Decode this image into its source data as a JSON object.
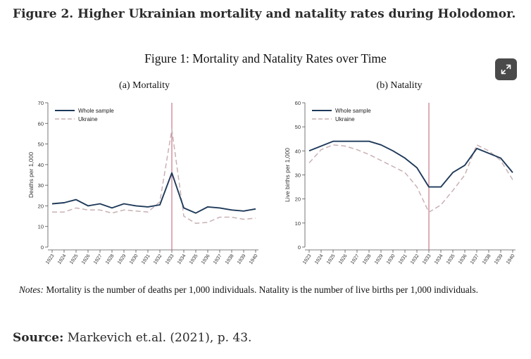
{
  "page": {
    "heading": "Figure 2. Higher Ukrainian mortality and natality rates during Holodomor.",
    "figure_title": "Figure 1: Mortality and Natality Rates over Time",
    "notes_label": "Notes:",
    "notes_text": " Mortality is the number of deaths per 1,000 individuals. Natality is the number of live births per 1,000 individuals.",
    "source_label": "Source:",
    "source_text": " Markevich et.al. (2021), p. 43.",
    "expand_icon": "expand-diagonal-arrows-icon"
  },
  "colors": {
    "whole_sample": "#1f3a5a",
    "ukraine": "#c9b1b4",
    "event_line": "#c26a7d",
    "axis": "#555555",
    "button_bg": "#4a4a4a"
  },
  "chart_data": [
    {
      "type": "line",
      "title": "(a) Mortality",
      "ylabel": "Deaths per 1,000",
      "xlabel": "",
      "x": [
        "1923",
        "1924",
        "1925",
        "1926",
        "1927",
        "1928",
        "1929",
        "1930",
        "1931",
        "1932",
        "1933",
        "1934",
        "1935",
        "1936",
        "1937",
        "1938",
        "1939",
        "1940"
      ],
      "ylim": [
        0,
        70
      ],
      "yticks": [
        0,
        10,
        20,
        30,
        40,
        50,
        60,
        70
      ],
      "vline_x": "1933",
      "legend_position": "top-left",
      "series": [
        {
          "name": "Whole sample",
          "style": "solid",
          "values": [
            21,
            21.5,
            23,
            20,
            21,
            19,
            21,
            20,
            19.5,
            20.5,
            36,
            19,
            16.5,
            19.5,
            19,
            18,
            17.5,
            18.5
          ]
        },
        {
          "name": "Ukraine",
          "style": "dashed",
          "values": [
            17,
            17,
            19,
            18,
            18,
            16.5,
            18,
            17.5,
            17,
            22,
            57,
            15,
            11.5,
            12,
            14.5,
            14.5,
            13.5,
            14
          ]
        }
      ]
    },
    {
      "type": "line",
      "title": "(b) Natality",
      "ylabel": "Live births per 1,000",
      "xlabel": "",
      "x": [
        "1923",
        "1924",
        "1925",
        "1926",
        "1927",
        "1928",
        "1929",
        "1930",
        "1931",
        "1932",
        "1933",
        "1934",
        "1935",
        "1936",
        "1937",
        "1938",
        "1939",
        "1940"
      ],
      "ylim": [
        0,
        60
      ],
      "yticks": [
        0,
        10,
        20,
        30,
        40,
        50,
        60
      ],
      "vline_x": "1933",
      "legend_position": "top-left",
      "series": [
        {
          "name": "Whole sample",
          "style": "solid",
          "values": [
            40,
            42,
            44,
            44,
            44,
            44,
            42.5,
            40,
            37,
            33,
            25,
            25,
            31,
            34,
            41,
            39,
            37,
            31
          ]
        },
        {
          "name": "Ukraine",
          "style": "dashed",
          "values": [
            35,
            40.5,
            42.5,
            42,
            40.5,
            38.5,
            36,
            33.5,
            31,
            25,
            14.5,
            17.5,
            23.5,
            30,
            42.5,
            40,
            36,
            28
          ]
        }
      ]
    }
  ]
}
